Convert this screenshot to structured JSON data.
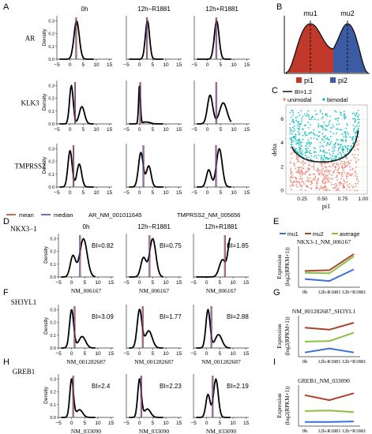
{
  "panel_letters": [
    "A",
    "B",
    "C",
    "D",
    "E",
    "F",
    "G",
    "H",
    "I"
  ],
  "conditions": [
    "0h",
    "12h−R1881",
    "12h+R1881"
  ],
  "density_label": "Density",
  "a_genes": [
    "AR",
    "KLK3",
    "TMPRSS2"
  ],
  "a_legend": {
    "mean": "mean",
    "median": "median",
    "ar": "AR_NM_001011645",
    "tmprss2": "TMPRSS2_NM_005656"
  },
  "density_ticks": [
    "−5",
    "0",
    "5",
    "10",
    "15"
  ],
  "b_labels": {
    "mu1": "mu1",
    "mu2": "mu2",
    "pi1": "pi1",
    "pi2": "pi2"
  },
  "c_legend": {
    "bi": "BI=1.2",
    "unimodal": "unimodal",
    "bimodal": "bimodal"
  },
  "c_axes": {
    "x": "pi1",
    "y": "delta",
    "xticks": [
      "0.25",
      "0.50",
      "0.75",
      "1.00"
    ],
    "yticks": [
      "0",
      "2",
      "4",
      "6"
    ]
  },
  "genes": [
    {
      "label": "NKX3−1",
      "xlabel": "NM_006167",
      "bi": [
        "BI=0.82",
        "BI=0.75",
        "BI=1.85"
      ]
    },
    {
      "label": "SH3YL1",
      "xlabel": "NM_001282687",
      "bi": [
        "BI=3.09",
        "BI=1.77",
        "BI=2.88"
      ]
    },
    {
      "label": "GREB1",
      "xlabel": "NM_033090",
      "bi": [
        "BI=2.4",
        "BI=2.23",
        "BI=2.19"
      ]
    }
  ],
  "expr_legend": {
    "mu1": "mu1",
    "mu2": "mu2",
    "avg": "average"
  },
  "expr_titles": [
    "NKX3-1_NM_006167",
    "NM_001282687_SH3YL1",
    "GREB1_NM_033090"
  ],
  "expr_ylabel": "Expression (log2(RPKM+1))",
  "expr_xticks": [
    "0h",
    "12h-R1881",
    "12h+R1881"
  ],
  "colors": {
    "mean": "#b13a1a",
    "median": "#2d44c8",
    "mu1": "#3a6fd8",
    "mu2": "#a8432a",
    "avg": "#8cbf3f",
    "red": "#c0392b",
    "blue": "#3b5ba5",
    "teal": "#1fc4c4",
    "salmon": "#f08a78"
  },
  "chart_data": [
    {
      "type": "line",
      "panel": "A-AR",
      "note": "density curves",
      "series": [
        {
          "condition": "0h",
          "peaks": [
            [
              2.5,
              1.0
            ]
          ]
        },
        {
          "condition": "12h−R1881",
          "peaks": [
            [
              3.0,
              1.0
            ]
          ]
        },
        {
          "condition": "12h+R1881",
          "peaks": [
            [
              3.5,
              1.0
            ]
          ]
        }
      ]
    },
    {
      "type": "line",
      "panel": "A-KLK3",
      "series": [
        {
          "condition": "0h",
          "peaks": [
            [
              0.5,
              1.0
            ],
            [
              4.5,
              0.45
            ]
          ]
        },
        {
          "condition": "12h−R1881",
          "peaks": [
            [
              0.0,
              1.0
            ]
          ]
        },
        {
          "condition": "12h+R1881",
          "peaks": [
            [
              1.0,
              0.75
            ],
            [
              6.0,
              0.55
            ]
          ]
        }
      ]
    },
    {
      "type": "line",
      "panel": "A-TMPRSS2",
      "series": [
        {
          "condition": "0h",
          "peaks": [
            [
              0.0,
              0.95
            ],
            [
              3.5,
              0.6
            ]
          ]
        },
        {
          "condition": "12h−R1881",
          "peaks": [
            [
              0.5,
              0.9
            ],
            [
              3.5,
              0.55
            ]
          ]
        },
        {
          "condition": "12h+R1881",
          "peaks": [
            [
              0.5,
              0.45
            ],
            [
              4.5,
              1.0
            ]
          ]
        }
      ]
    },
    {
      "type": "line",
      "panel": "E",
      "categories": [
        "0h",
        "12h-R1881",
        "12h+R1881"
      ],
      "ylabel": "Expression (log2(RPKM+1))",
      "series": [
        {
          "name": "mu1",
          "values": [
            1.3,
            0.8,
            3.8
          ]
        },
        {
          "name": "mu2",
          "values": [
            3.4,
            3.6,
            7.8
          ]
        },
        {
          "name": "average",
          "values": [
            2.9,
            2.8,
            7.2
          ]
        }
      ]
    },
    {
      "type": "line",
      "panel": "G",
      "categories": [
        "0h",
        "12h-R1881",
        "12h+R1881"
      ],
      "ylabel": "Expression (log2(RPKM+1))",
      "series": [
        {
          "name": "mu1",
          "values": [
            0.1,
            0.5,
            0.1
          ]
        },
        {
          "name": "mu2",
          "values": [
            2.6,
            2.4,
            3.1
          ]
        },
        {
          "name": "average",
          "values": [
            1.2,
            1.25,
            2.1
          ]
        }
      ]
    },
    {
      "type": "line",
      "panel": "I",
      "categories": [
        "0h",
        "12h-R1881",
        "12h+R1881"
      ],
      "ylabel": "Expression (log2(RPKM+1))",
      "series": [
        {
          "name": "mu1",
          "values": [
            0.1,
            0.1,
            0.15
          ]
        },
        {
          "name": "mu2",
          "values": [
            2.8,
            2.3,
            3.0
          ]
        },
        {
          "name": "average",
          "values": [
            1.2,
            1.25,
            1.1
          ]
        }
      ]
    }
  ]
}
